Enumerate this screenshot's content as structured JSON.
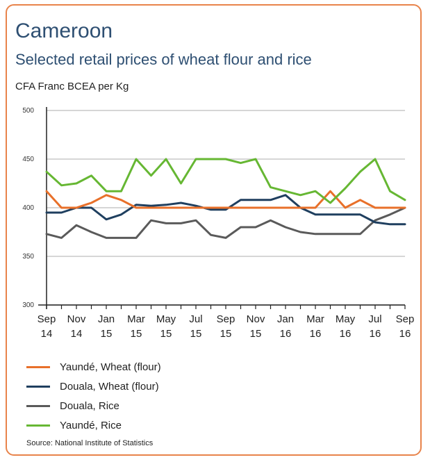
{
  "header": {
    "title": "Cameroon",
    "subtitle": "Selected retail prices of wheat flour and rice",
    "unit_label": "CFA Franc BCEA per Kg"
  },
  "footer": {
    "source": "Source: National Institute of Statistics"
  },
  "colors": {
    "border": "#e8834a",
    "title": "#2e4f72",
    "grid": "#c8c8c8"
  },
  "chart_data": {
    "type": "line",
    "title": "Cameroon",
    "subtitle": "Selected retail prices of wheat flour and rice",
    "ylabel": "CFA Franc BCEA per Kg",
    "xlabel": "",
    "ylim": [
      300,
      500
    ],
    "yticks": [
      300,
      350,
      400,
      450,
      500
    ],
    "grid": true,
    "legend_position": "bottom",
    "x": [
      "Sep 14",
      "Oct 14",
      "Nov 14",
      "Dec 14",
      "Jan 15",
      "Feb 15",
      "Mar 15",
      "Apr 15",
      "May 15",
      "Jun 15",
      "Jul 15",
      "Aug 15",
      "Sep 15",
      "Oct 15",
      "Nov 15",
      "Dec 15",
      "Jan 16",
      "Feb 16",
      "Mar 16",
      "Apr 16",
      "May 16",
      "Jun 16",
      "Jul 16",
      "Aug 16",
      "Sep 16"
    ],
    "xtick_labels": [
      {
        "month": "Sep",
        "year": "14"
      },
      {
        "month": "Nov",
        "year": "14"
      },
      {
        "month": "Jan",
        "year": "15"
      },
      {
        "month": "Mar",
        "year": "15"
      },
      {
        "month": "May",
        "year": "15"
      },
      {
        "month": "Jul",
        "year": "15"
      },
      {
        "month": "Sep",
        "year": "15"
      },
      {
        "month": "Nov",
        "year": "15"
      },
      {
        "month": "Jan",
        "year": "16"
      },
      {
        "month": "Mar",
        "year": "16"
      },
      {
        "month": "May",
        "year": "16"
      },
      {
        "month": "Jul",
        "year": "16"
      },
      {
        "month": "Sep",
        "year": "16"
      }
    ],
    "series": [
      {
        "name": "Yaundé, Wheat (flour)",
        "color": "#e8702a",
        "values": [
          417,
          400,
          400,
          405,
          413,
          408,
          400,
          400,
          400,
          400,
          400,
          400,
          400,
          400,
          400,
          400,
          400,
          400,
          400,
          417,
          400,
          408,
          400,
          400,
          400
        ]
      },
      {
        "name": "Douala, Wheat (flour)",
        "color": "#1f3f5f",
        "values": [
          395,
          395,
          400,
          400,
          388,
          393,
          403,
          402,
          403,
          405,
          402,
          398,
          398,
          408,
          408,
          408,
          413,
          400,
          393,
          393,
          393,
          393,
          385,
          383,
          383
        ]
      },
      {
        "name": "Douala, Rice",
        "color": "#5a5a5a",
        "values": [
          373,
          369,
          382,
          375,
          369,
          369,
          369,
          387,
          384,
          384,
          387,
          372,
          369,
          380,
          380,
          387,
          380,
          375,
          373,
          373,
          373,
          373,
          387,
          393,
          400
        ]
      },
      {
        "name": "Yaundé, Rice",
        "color": "#66b733",
        "values": [
          437,
          423,
          425,
          433,
          417,
          417,
          450,
          433,
          450,
          425,
          450,
          450,
          450,
          446,
          450,
          421,
          417,
          413,
          417,
          405,
          420,
          437,
          450,
          417,
          408
        ]
      }
    ]
  }
}
